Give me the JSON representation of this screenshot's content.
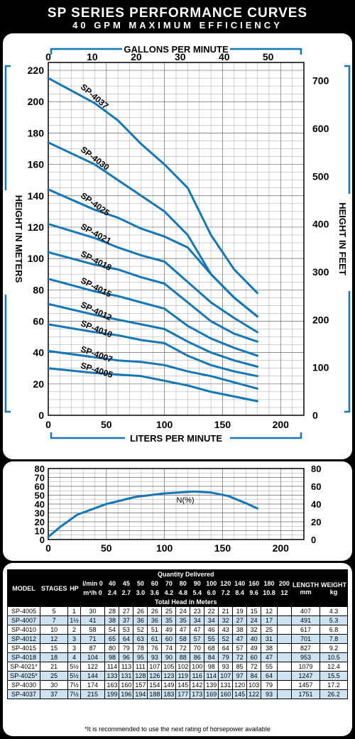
{
  "title": "SP SERIES PERFORMANCE CURVES",
  "subtitle": "40 GPM MAXIMUM EFFICIENCY",
  "chart_data": [
    {
      "type": "line",
      "title": "",
      "x_top_label": "GALLONS PER MINUTE",
      "x_top_ticks": [
        "0",
        "10",
        "20",
        "30",
        "40",
        "50"
      ],
      "xlabel": "LITERS PER MINUTE",
      "x_ticks": [
        "0",
        "50",
        "100",
        "150",
        "200"
      ],
      "xlim": [
        0,
        220
      ],
      "ylabel": "HEIGHT IN METERS",
      "y_ticks": [
        "0",
        "20",
        "40",
        "60",
        "80",
        "100",
        "120",
        "140",
        "160",
        "180",
        "200",
        "220"
      ],
      "ylim": [
        0,
        225
      ],
      "y_right_label": "HEIGHT IN FEET",
      "y_right_ticks": [
        "0",
        "100",
        "200",
        "300",
        "400",
        "500",
        "600",
        "700"
      ],
      "grid": true,
      "series": [
        {
          "name": "SP-4037",
          "x": [
            0,
            40,
            60,
            80,
            100,
            120,
            140,
            160,
            180
          ],
          "y": [
            215,
            199,
            188,
            173,
            160,
            145,
            115,
            93,
            78
          ]
        },
        {
          "name": "SP-4030",
          "x": [
            0,
            40,
            60,
            80,
            100,
            120,
            140,
            160,
            180
          ],
          "y": [
            174,
            160,
            150,
            140,
            130,
            115,
            90,
            75,
            63
          ]
        },
        {
          "name": "SP-4025",
          "x": [
            0,
            40,
            60,
            80,
            100,
            120,
            140,
            160,
            180
          ],
          "y": [
            144,
            131,
            126,
            119,
            114,
            107,
            90,
            75,
            63
          ]
        },
        {
          "name": "SP-4021",
          "x": [
            0,
            40,
            60,
            80,
            100,
            120,
            140,
            160,
            180
          ],
          "y": [
            122,
            113,
            107,
            102,
            98,
            85,
            72,
            62,
            53
          ]
        },
        {
          "name": "SP-4018",
          "x": [
            0,
            40,
            60,
            80,
            100,
            120,
            140,
            160,
            180
          ],
          "y": [
            104,
            96,
            93,
            88,
            84,
            72,
            60,
            52,
            47
          ]
        },
        {
          "name": "SP-4015",
          "x": [
            0,
            40,
            60,
            80,
            100,
            120,
            140,
            160,
            180
          ],
          "y": [
            87,
            79,
            76,
            72,
            68,
            57,
            49,
            43,
            38
          ]
        },
        {
          "name": "SP-4012",
          "x": [
            0,
            40,
            60,
            80,
            100,
            120,
            140,
            160,
            180
          ],
          "y": [
            71,
            64,
            61,
            58,
            55,
            47,
            40,
            35,
            31
          ]
        },
        {
          "name": "SP-4010",
          "x": [
            0,
            40,
            60,
            80,
            100,
            120,
            140,
            160,
            180
          ],
          "y": [
            58,
            53,
            51,
            48,
            46,
            38,
            32,
            28,
            25
          ]
        },
        {
          "name": "SP-4007",
          "x": [
            0,
            40,
            60,
            80,
            100,
            120,
            140,
            160,
            180
          ],
          "y": [
            41,
            37,
            35,
            34,
            32,
            28,
            25,
            21,
            17
          ]
        },
        {
          "name": "SP-4005",
          "x": [
            0,
            40,
            60,
            80,
            100,
            120,
            140,
            160,
            180
          ],
          "y": [
            30,
            27,
            26,
            25,
            22,
            19,
            15,
            12,
            9
          ]
        }
      ]
    },
    {
      "type": "line",
      "title": "",
      "xlim": [
        0,
        220
      ],
      "x_ticks": [
        "0",
        "50",
        "100",
        "150",
        "200"
      ],
      "ylim": [
        0,
        80
      ],
      "y_ticks": [
        "0",
        "10",
        "20",
        "30",
        "40",
        "50",
        "60",
        "70",
        "80"
      ],
      "y_right_ticks": [
        "0",
        "20",
        "40",
        "60",
        "80"
      ],
      "grid": true,
      "series": [
        {
          "name": "N(%)",
          "x": [
            0,
            10,
            25,
            50,
            75,
            100,
            125,
            140,
            155,
            170,
            180
          ],
          "y": [
            3,
            14,
            28,
            40,
            48,
            52,
            54,
            53,
            49,
            41,
            35
          ]
        }
      ]
    }
  ],
  "table": {
    "h_model": "MODEL",
    "h_stages": "STAGES",
    "h_hp": "HP",
    "h_qty": "Quantity Delivered",
    "h_lmin": "l/min",
    "h_m3h": "m³/h",
    "h_head": "Total Head in Meters",
    "h_length": "LENGTH",
    "h_length_unit": "mm",
    "h_weight": "WEIGHT",
    "h_weight_unit": "kg",
    "lmin": [
      "0",
      "40",
      "45",
      "50",
      "60",
      "70",
      "80",
      "90",
      "100",
      "120",
      "140",
      "160",
      "180",
      "200"
    ],
    "m3h": [
      "0",
      "2.4",
      "2.7",
      "3.0",
      "3.6",
      "4.2",
      "4.8",
      "5.4",
      "6.0",
      "7.2",
      "8.4",
      "9.6",
      "10.8",
      "12"
    ],
    "rows": [
      {
        "model": "SP-4005",
        "stages": "5",
        "hp": "1",
        "heads": [
          "30",
          "28",
          "27",
          "26",
          "26",
          "25",
          "24",
          "23",
          "22",
          "21",
          "19",
          "15",
          "12",
          ""
        ],
        "length": "407",
        "weight": "4.3"
      },
      {
        "model": "SP-4007",
        "stages": "7",
        "hp": "1½",
        "heads": [
          "41",
          "38",
          "37",
          "36",
          "36",
          "35",
          "35",
          "34",
          "34",
          "32",
          "27",
          "24",
          "17",
          ""
        ],
        "length": "491",
        "weight": "5.3"
      },
      {
        "model": "SP-4010",
        "stages": "10",
        "hp": "2",
        "heads": [
          "58",
          "54",
          "53",
          "52",
          "51",
          "49",
          "47",
          "47",
          "46",
          "43",
          "38",
          "32",
          "25",
          ""
        ],
        "length": "617",
        "weight": "6.8"
      },
      {
        "model": "SP-4012",
        "stages": "12",
        "hp": "3",
        "heads": [
          "71",
          "65",
          "64",
          "63",
          "61",
          "60",
          "58",
          "57",
          "55",
          "52",
          "47",
          "40",
          "31",
          ""
        ],
        "length": "701",
        "weight": "7.8"
      },
      {
        "model": "SP-4015",
        "stages": "15",
        "hp": "3",
        "heads": [
          "87",
          "80",
          "79",
          "78",
          "76",
          "74",
          "72",
          "70",
          "68",
          "64",
          "57",
          "49",
          "38",
          ""
        ],
        "length": "827",
        "weight": "9.2"
      },
      {
        "model": "SP-4018",
        "stages": "18",
        "hp": "4",
        "heads": [
          "104",
          "98",
          "96",
          "95",
          "93",
          "90",
          "88",
          "86",
          "84",
          "79",
          "72",
          "60",
          "47",
          ""
        ],
        "length": "953",
        "weight": "10.5"
      },
      {
        "model": "SP-4021*",
        "stages": "21",
        "hp": "5½",
        "heads": [
          "122",
          "114",
          "113",
          "111",
          "107",
          "105",
          "102",
          "100",
          "98",
          "93",
          "85",
          "72",
          "55",
          ""
        ],
        "length": "1079",
        "weight": "12.4"
      },
      {
        "model": "SP-4025*",
        "stages": "25",
        "hp": "5½",
        "heads": [
          "144",
          "133",
          "131",
          "128",
          "126",
          "123",
          "119",
          "116",
          "114",
          "107",
          "97",
          "84",
          "64",
          ""
        ],
        "length": "1247",
        "weight": "15.5"
      },
      {
        "model": "SP-4030",
        "stages": "30",
        "hp": "7½",
        "heads": [
          "174",
          "163",
          "160",
          "157",
          "154",
          "149",
          "145",
          "142",
          "139",
          "131",
          "120",
          "103",
          "79",
          ""
        ],
        "length": "1457",
        "weight": "17.2"
      },
      {
        "model": "SP-4037",
        "stages": "37",
        "hp": "7½",
        "heads": [
          "215",
          "199",
          "196",
          "194",
          "188",
          "183",
          "177",
          "173",
          "169",
          "160",
          "145",
          "122",
          "93",
          ""
        ],
        "length": "1751",
        "weight": "26.2"
      }
    ]
  },
  "note": "*It is recommended to use the next rating of horsepower available",
  "colors": {
    "curve": "#1477b8",
    "frame": "#000000",
    "row_alt": "#cde3f2",
    "grid": "#555555"
  }
}
